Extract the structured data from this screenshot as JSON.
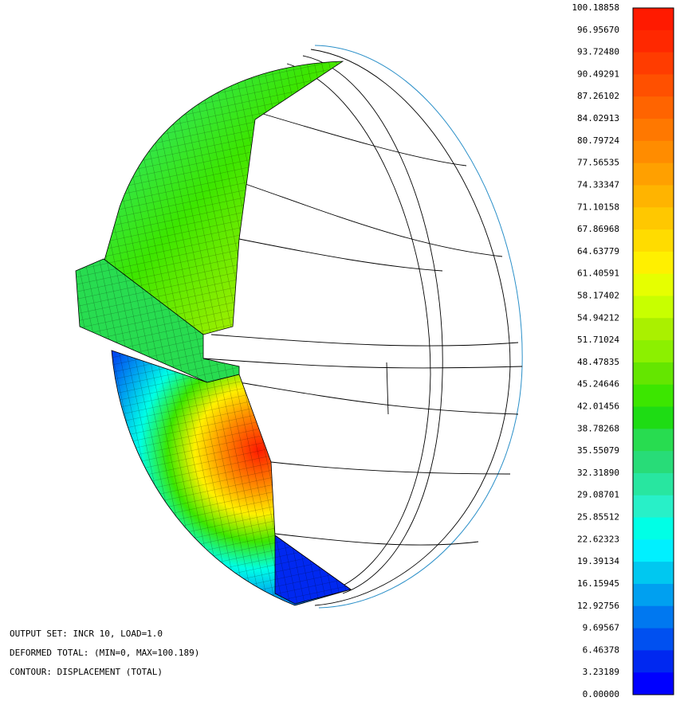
{
  "legend": {
    "labels": [
      "100.18858",
      "96.95670",
      "93.72480",
      "90.49291",
      "87.26102",
      "84.02913",
      "80.79724",
      "77.56535",
      "74.33347",
      "71.10158",
      "67.86968",
      "64.63779",
      "61.40591",
      "58.17402",
      "54.94212",
      "51.71024",
      "48.47835",
      "45.24646",
      "42.01456",
      "38.78268",
      "35.55079",
      "32.31890",
      "29.08701",
      "25.85512",
      "22.62323",
      "19.39134",
      "16.15945",
      "12.92756",
      "9.69567",
      "6.46378",
      "3.23189",
      "0.00000"
    ],
    "colors": [
      "#ff1a00",
      "#ff2800",
      "#ff3c00",
      "#ff5000",
      "#ff6400",
      "#ff7800",
      "#ff8c00",
      "#ffa000",
      "#ffb400",
      "#ffc800",
      "#ffdc00",
      "#fff000",
      "#e6ff00",
      "#c8ff00",
      "#aaf000",
      "#8cf000",
      "#64e600",
      "#3ce600",
      "#1edc14",
      "#28dc50",
      "#28dc78",
      "#28e6a0",
      "#28f0c8",
      "#00ffe6",
      "#00f0ff",
      "#00c8f0",
      "#00a0f0",
      "#0078f0",
      "#0050f0",
      "#0028f0",
      "#0000ff"
    ]
  },
  "info": [
    "OUTPUT SET: INCR 10, LOAD=1.0",
    "DEFORMED TOTAL: (MIN=0, MAX=100.189)",
    "CONTOUR: DISPLACEMENT (TOTAL)"
  ]
}
